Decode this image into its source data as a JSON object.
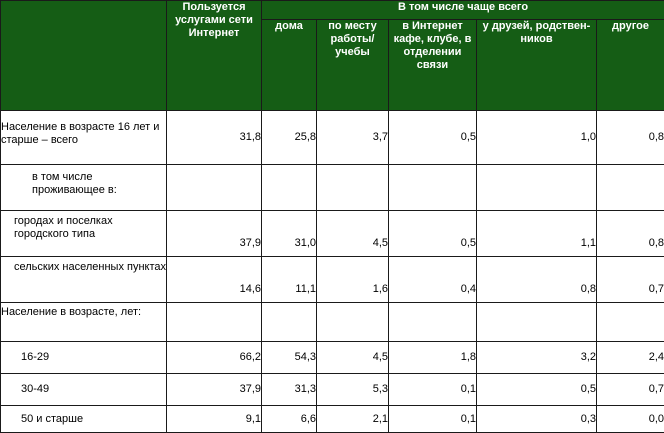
{
  "header": {
    "users": "Пользуется услугами сети Интернет",
    "group": "В том числе чаще всего",
    "home": "дома",
    "work": "по месту работы/ учебы",
    "cafe": "в Интернет кафе, клубе, в отделении связи",
    "friends": "у друзей, родствен-ников",
    "other": "другое"
  },
  "rows": [
    {
      "label": "Население в возрасте 16 лет и старше – всего",
      "values": [
        "31,8",
        "25,8",
        "3,7",
        "0,5",
        "1,0",
        "0,8"
      ]
    },
    {
      "label": "в том числе проживающее в:",
      "values": [
        "",
        "",
        "",
        "",
        "",
        ""
      ]
    },
    {
      "label": "городах и поселках городского типа",
      "values": [
        "37,9",
        "31,0",
        "4,5",
        "0,5",
        "1,1",
        "0,8"
      ]
    },
    {
      "label": "сельских населенных пунктах",
      "values": [
        "14,6",
        "11,1",
        "1,6",
        "0,4",
        "0,8",
        "0,7"
      ]
    },
    {
      "label": "Население в возрасте, лет:",
      "values": [
        "",
        "",
        "",
        "",
        "",
        ""
      ]
    },
    {
      "label": "16-29",
      "values": [
        "66,2",
        "54,3",
        "4,5",
        "1,8",
        "3,2",
        "2,4"
      ]
    },
    {
      "label": "30-49",
      "values": [
        "37,9",
        "31,3",
        "5,3",
        "0,1",
        "0,5",
        "0,7"
      ]
    },
    {
      "label": "50 и старше",
      "values": [
        "9,1",
        "6,6",
        "2,1",
        "0,1",
        "0,3",
        "0,0"
      ]
    }
  ]
}
